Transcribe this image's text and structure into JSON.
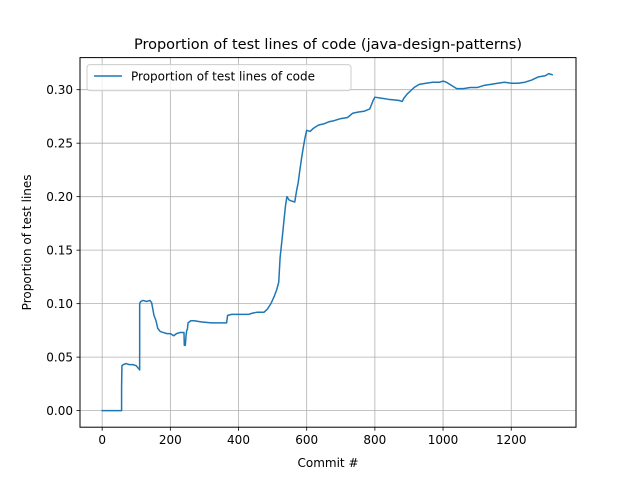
{
  "chart_data": {
    "type": "line",
    "title": "Proportion of test lines of code (java-design-patterns)",
    "xlabel": "Commit #",
    "ylabel": "Proportion of test lines",
    "xlim": [
      -65,
      1390
    ],
    "ylim": [
      -0.0155,
      0.33
    ],
    "xticks": [
      0,
      200,
      400,
      600,
      800,
      1000,
      1200
    ],
    "yticks": [
      0.0,
      0.05,
      0.1,
      0.15,
      0.2,
      0.25,
      0.3
    ],
    "xtick_labels": [
      "0",
      "200",
      "400",
      "600",
      "800",
      "1000",
      "1200"
    ],
    "ytick_labels": [
      "0.00",
      "0.05",
      "0.10",
      "0.15",
      "0.20",
      "0.25",
      "0.30"
    ],
    "grid": true,
    "legend_position": "upper-left",
    "series": [
      {
        "name": "Proportion of test lines of code",
        "color": "#1f77b4",
        "points": [
          [
            0,
            0.0
          ],
          [
            57,
            0.0
          ],
          [
            57,
            0.022
          ],
          [
            58,
            0.042
          ],
          [
            62,
            0.043
          ],
          [
            70,
            0.044
          ],
          [
            80,
            0.043
          ],
          [
            90,
            0.043
          ],
          [
            100,
            0.042
          ],
          [
            105,
            0.04
          ],
          [
            108,
            0.039
          ],
          [
            110,
            0.038
          ],
          [
            110,
            0.1
          ],
          [
            113,
            0.102
          ],
          [
            120,
            0.103
          ],
          [
            130,
            0.102
          ],
          [
            140,
            0.103
          ],
          [
            145,
            0.101
          ],
          [
            148,
            0.096
          ],
          [
            152,
            0.089
          ],
          [
            158,
            0.084
          ],
          [
            163,
            0.077
          ],
          [
            170,
            0.074
          ],
          [
            180,
            0.073
          ],
          [
            190,
            0.072
          ],
          [
            200,
            0.072
          ],
          [
            210,
            0.07
          ],
          [
            218,
            0.072
          ],
          [
            228,
            0.073
          ],
          [
            240,
            0.073
          ],
          [
            241,
            0.061
          ],
          [
            244,
            0.061
          ],
          [
            246,
            0.07
          ],
          [
            248,
            0.075
          ],
          [
            250,
            0.076
          ],
          [
            252,
            0.082
          ],
          [
            260,
            0.084
          ],
          [
            270,
            0.084
          ],
          [
            290,
            0.083
          ],
          [
            320,
            0.082
          ],
          [
            340,
            0.082
          ],
          [
            365,
            0.082
          ],
          [
            368,
            0.089
          ],
          [
            380,
            0.09
          ],
          [
            400,
            0.09
          ],
          [
            430,
            0.09
          ],
          [
            440,
            0.091
          ],
          [
            455,
            0.092
          ],
          [
            465,
            0.092
          ],
          [
            475,
            0.092
          ],
          [
            485,
            0.095
          ],
          [
            495,
            0.1
          ],
          [
            505,
            0.107
          ],
          [
            512,
            0.113
          ],
          [
            518,
            0.12
          ],
          [
            522,
            0.143
          ],
          [
            526,
            0.155
          ],
          [
            530,
            0.167
          ],
          [
            534,
            0.18
          ],
          [
            538,
            0.192
          ],
          [
            542,
            0.2
          ],
          [
            548,
            0.197
          ],
          [
            555,
            0.196
          ],
          [
            565,
            0.195
          ],
          [
            570,
            0.205
          ],
          [
            575,
            0.213
          ],
          [
            580,
            0.225
          ],
          [
            585,
            0.236
          ],
          [
            590,
            0.246
          ],
          [
            595,
            0.255
          ],
          [
            600,
            0.262
          ],
          [
            610,
            0.261
          ],
          [
            620,
            0.264
          ],
          [
            635,
            0.267
          ],
          [
            650,
            0.268
          ],
          [
            665,
            0.27
          ],
          [
            680,
            0.271
          ],
          [
            700,
            0.273
          ],
          [
            720,
            0.274
          ],
          [
            735,
            0.278
          ],
          [
            750,
            0.279
          ],
          [
            770,
            0.28
          ],
          [
            785,
            0.282
          ],
          [
            795,
            0.29
          ],
          [
            800,
            0.293
          ],
          [
            820,
            0.292
          ],
          [
            840,
            0.291
          ],
          [
            870,
            0.29
          ],
          [
            880,
            0.289
          ],
          [
            885,
            0.292
          ],
          [
            895,
            0.296
          ],
          [
            905,
            0.299
          ],
          [
            915,
            0.302
          ],
          [
            930,
            0.305
          ],
          [
            950,
            0.306
          ],
          [
            970,
            0.307
          ],
          [
            990,
            0.307
          ],
          [
            1000,
            0.308
          ],
          [
            1010,
            0.307
          ],
          [
            1020,
            0.305
          ],
          [
            1030,
            0.303
          ],
          [
            1040,
            0.301
          ],
          [
            1060,
            0.301
          ],
          [
            1080,
            0.302
          ],
          [
            1100,
            0.302
          ],
          [
            1120,
            0.304
          ],
          [
            1140,
            0.305
          ],
          [
            1160,
            0.306
          ],
          [
            1180,
            0.307
          ],
          [
            1200,
            0.306
          ],
          [
            1220,
            0.306
          ],
          [
            1240,
            0.307
          ],
          [
            1260,
            0.309
          ],
          [
            1280,
            0.312
          ],
          [
            1300,
            0.313
          ],
          [
            1310,
            0.315
          ],
          [
            1320,
            0.314
          ]
        ]
      }
    ]
  }
}
